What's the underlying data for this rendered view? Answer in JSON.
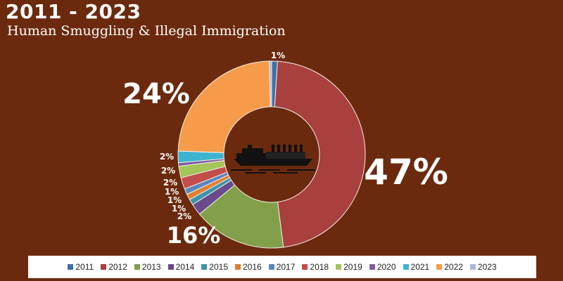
{
  "chart_data": {
    "type": "pie",
    "title": "2011 - 2023",
    "subtitle": "Human Smuggling & Illegal Immigration",
    "legend_position": "bottom",
    "donut": true,
    "center_icon": "boat-icon",
    "slices": [
      {
        "name": "2011",
        "value": 1,
        "label": "1%",
        "color": "#3f6fa8"
      },
      {
        "name": "2012",
        "value": 47,
        "label": "47%",
        "color": "#a8403e"
      },
      {
        "name": "2013",
        "value": 16,
        "label": "16%",
        "color": "#82a04a"
      },
      {
        "name": "2014",
        "value": 2,
        "label": "2%",
        "color": "#6b4a8c"
      },
      {
        "name": "2015",
        "value": 1,
        "label": "1%",
        "color": "#3b94ad"
      },
      {
        "name": "2016",
        "value": 1,
        "label": "1%",
        "color": "#e07f32"
      },
      {
        "name": "2017",
        "value": 1,
        "label": "1%",
        "color": "#5b86c0"
      },
      {
        "name": "2018",
        "value": 2,
        "label": "2%",
        "color": "#c34d4b"
      },
      {
        "name": "2019",
        "value": 2,
        "label": "2%",
        "color": "#a3c55a"
      },
      {
        "name": "2020",
        "value": 0.6,
        "label": "",
        "color": "#7f5ba6"
      },
      {
        "name": "2021",
        "value": 2,
        "label": "2%",
        "color": "#3eb3cf"
      },
      {
        "name": "2022",
        "value": 24,
        "label": "24%",
        "color": "#f59b4a"
      },
      {
        "name": "2023",
        "value": 0.4,
        "label": "",
        "color": "#a7b9d8"
      }
    ]
  }
}
